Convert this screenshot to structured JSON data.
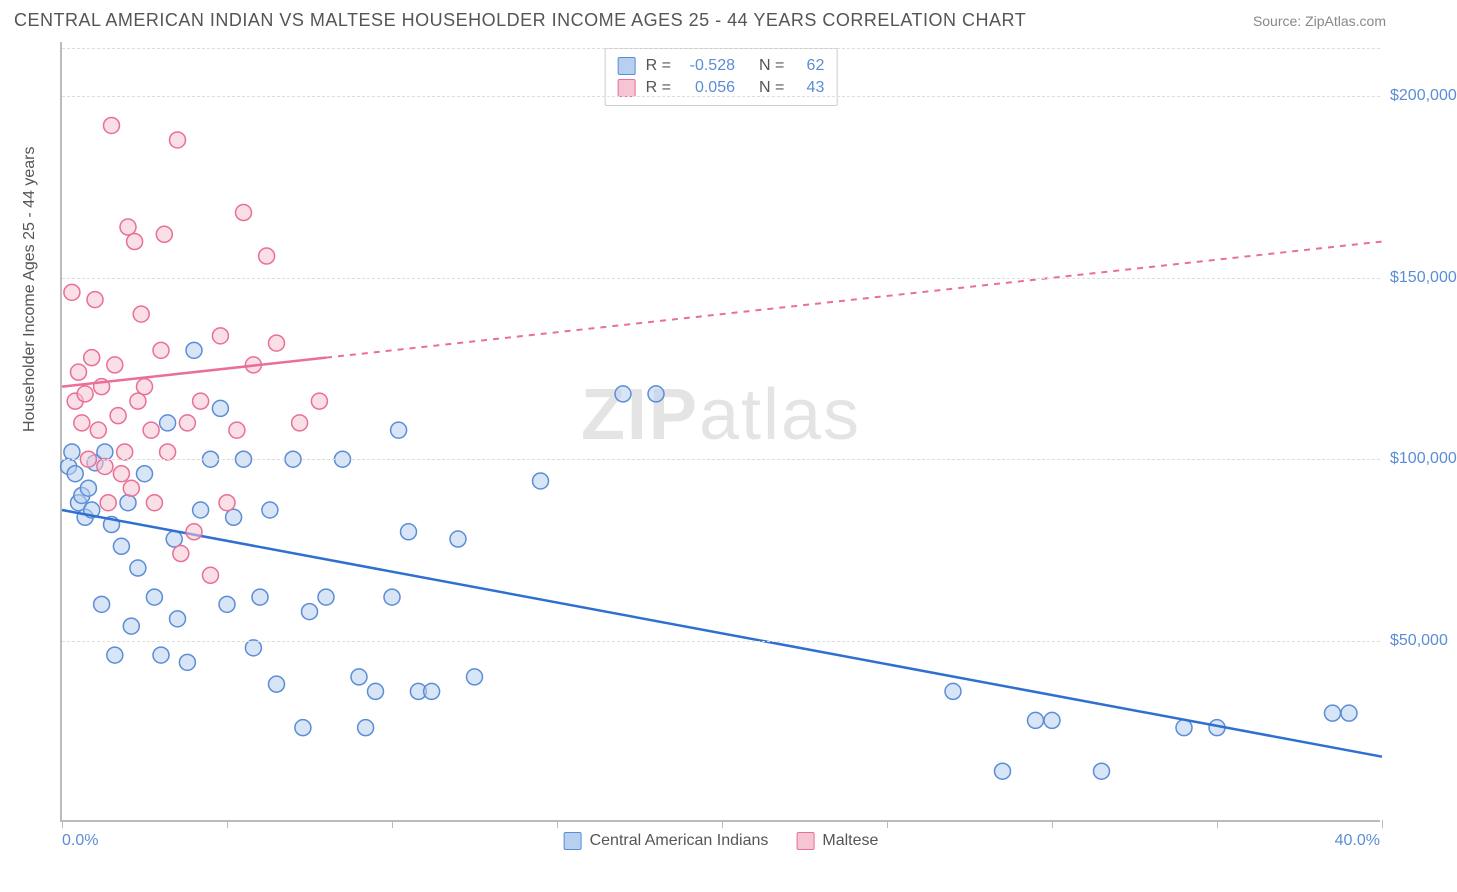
{
  "header": {
    "title": "CENTRAL AMERICAN INDIAN VS MALTESE HOUSEHOLDER INCOME AGES 25 - 44 YEARS CORRELATION CHART",
    "source": "Source: ZipAtlas.com"
  },
  "watermark": {
    "zip": "ZIP",
    "atlas": "atlas"
  },
  "chart": {
    "type": "scatter",
    "ylabel": "Householder Income Ages 25 - 44 years",
    "background_color": "#ffffff",
    "grid_color": "#dddddd",
    "axis_color": "#bbbbbb",
    "tick_label_color": "#5b8dd6",
    "label_color": "#555555",
    "title_fontsize": 18,
    "label_fontsize": 16,
    "tick_fontsize": 16,
    "xlim": [
      0,
      40
    ],
    "ylim": [
      0,
      215000
    ],
    "xticks": [
      0,
      5,
      10,
      15,
      20,
      25,
      30,
      35,
      40
    ],
    "xtick_labels_shown": {
      "0": "0.0%",
      "40": "40.0%"
    },
    "yticks": [
      50000,
      100000,
      150000,
      200000
    ],
    "ytick_labels": [
      "$50,000",
      "$100,000",
      "$150,000",
      "$200,000"
    ],
    "marker_radius": 8,
    "marker_stroke_width": 1.5,
    "trend_line_width": 2.5,
    "series": [
      {
        "name": "Central American Indians",
        "fill": "#b7d0f0",
        "stroke": "#5b8dd6",
        "fill_opacity": 0.55,
        "R": "-0.528",
        "N": "62",
        "trend": {
          "x1": 0,
          "y1": 86000,
          "x2": 40,
          "y2": 18000,
          "solid_until_x": 40,
          "color": "#2e6fd1"
        },
        "points": [
          [
            0.2,
            98000
          ],
          [
            0.3,
            102000
          ],
          [
            0.4,
            96000
          ],
          [
            0.5,
            88000
          ],
          [
            0.6,
            90000
          ],
          [
            0.7,
            84000
          ],
          [
            0.8,
            92000
          ],
          [
            0.9,
            86000
          ],
          [
            1.0,
            99000
          ],
          [
            1.2,
            60000
          ],
          [
            1.3,
            102000
          ],
          [
            1.5,
            82000
          ],
          [
            1.8,
            76000
          ],
          [
            2.0,
            88000
          ],
          [
            2.1,
            54000
          ],
          [
            2.3,
            70000
          ],
          [
            2.5,
            96000
          ],
          [
            2.8,
            62000
          ],
          [
            3.0,
            46000
          ],
          [
            3.2,
            110000
          ],
          [
            3.4,
            78000
          ],
          [
            3.5,
            56000
          ],
          [
            3.8,
            44000
          ],
          [
            4.0,
            130000
          ],
          [
            4.2,
            86000
          ],
          [
            4.5,
            100000
          ],
          [
            4.8,
            114000
          ],
          [
            5.0,
            60000
          ],
          [
            5.2,
            84000
          ],
          [
            5.5,
            100000
          ],
          [
            5.8,
            48000
          ],
          [
            6.0,
            62000
          ],
          [
            6.3,
            86000
          ],
          [
            6.5,
            38000
          ],
          [
            7.0,
            100000
          ],
          [
            7.3,
            26000
          ],
          [
            7.5,
            58000
          ],
          [
            8.0,
            62000
          ],
          [
            8.5,
            100000
          ],
          [
            9.0,
            40000
          ],
          [
            9.2,
            26000
          ],
          [
            9.5,
            36000
          ],
          [
            10.0,
            62000
          ],
          [
            10.2,
            108000
          ],
          [
            10.5,
            80000
          ],
          [
            10.8,
            36000
          ],
          [
            11.2,
            36000
          ],
          [
            12.0,
            78000
          ],
          [
            12.5,
            40000
          ],
          [
            14.5,
            94000
          ],
          [
            17.0,
            118000
          ],
          [
            18.0,
            118000
          ],
          [
            27.0,
            36000
          ],
          [
            28.5,
            14000
          ],
          [
            29.5,
            28000
          ],
          [
            30.0,
            28000
          ],
          [
            31.5,
            14000
          ],
          [
            34.0,
            26000
          ],
          [
            35.0,
            26000
          ],
          [
            38.5,
            30000
          ],
          [
            39.0,
            30000
          ],
          [
            1.6,
            46000
          ]
        ]
      },
      {
        "name": "Maltese",
        "fill": "#f6c5d4",
        "stroke": "#e96f96",
        "fill_opacity": 0.55,
        "R": "0.056",
        "N": "43",
        "trend": {
          "x1": 0,
          "y1": 120000,
          "x2": 40,
          "y2": 160000,
          "solid_until_x": 8,
          "color": "#e96f96"
        },
        "points": [
          [
            0.3,
            146000
          ],
          [
            0.4,
            116000
          ],
          [
            0.5,
            124000
          ],
          [
            0.6,
            110000
          ],
          [
            0.7,
            118000
          ],
          [
            0.8,
            100000
          ],
          [
            0.9,
            128000
          ],
          [
            1.0,
            144000
          ],
          [
            1.1,
            108000
          ],
          [
            1.2,
            120000
          ],
          [
            1.3,
            98000
          ],
          [
            1.4,
            88000
          ],
          [
            1.5,
            192000
          ],
          [
            1.6,
            126000
          ],
          [
            1.7,
            112000
          ],
          [
            1.8,
            96000
          ],
          [
            1.9,
            102000
          ],
          [
            2.0,
            164000
          ],
          [
            2.1,
            92000
          ],
          [
            2.2,
            160000
          ],
          [
            2.3,
            116000
          ],
          [
            2.4,
            140000
          ],
          [
            2.5,
            120000
          ],
          [
            2.7,
            108000
          ],
          [
            2.8,
            88000
          ],
          [
            3.0,
            130000
          ],
          [
            3.1,
            162000
          ],
          [
            3.2,
            102000
          ],
          [
            3.5,
            188000
          ],
          [
            3.6,
            74000
          ],
          [
            3.8,
            110000
          ],
          [
            4.0,
            80000
          ],
          [
            4.2,
            116000
          ],
          [
            4.5,
            68000
          ],
          [
            4.8,
            134000
          ],
          [
            5.0,
            88000
          ],
          [
            5.3,
            108000
          ],
          [
            5.5,
            168000
          ],
          [
            5.8,
            126000
          ],
          [
            6.2,
            156000
          ],
          [
            6.5,
            132000
          ],
          [
            7.2,
            110000
          ],
          [
            7.8,
            116000
          ]
        ]
      }
    ],
    "bottom_legend": [
      {
        "label": "Central American Indians",
        "fill": "#b7d0f0",
        "stroke": "#5b8dd6"
      },
      {
        "label": "Maltese",
        "fill": "#f6c5d4",
        "stroke": "#e96f96"
      }
    ]
  }
}
